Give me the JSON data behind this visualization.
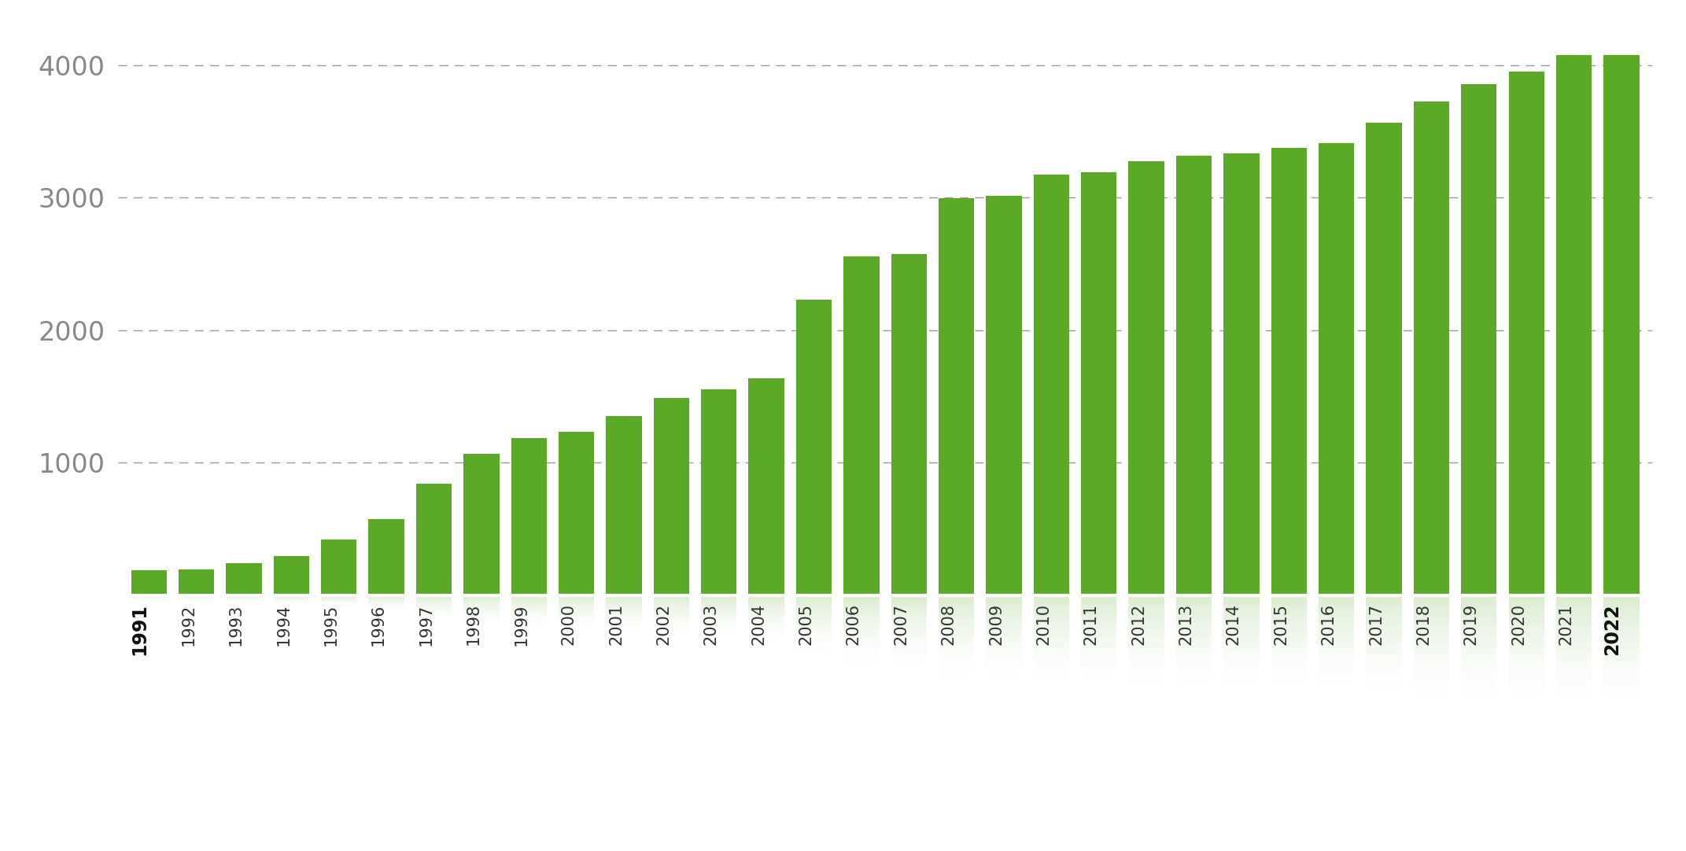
{
  "years": [
    "1991",
    "1992",
    "1993",
    "1994",
    "1995",
    "1996",
    "1997",
    "1998",
    "1999",
    "2000",
    "2001",
    "2002",
    "2003",
    "2004",
    "2005",
    "2006",
    "2007",
    "2008",
    "2009",
    "2010",
    "2011",
    "2012",
    "2013",
    "2014",
    "2015",
    "2016",
    "2017",
    "2018",
    "2019",
    "2020",
    "2021",
    "2022"
  ],
  "values": [
    190,
    195,
    245,
    295,
    420,
    575,
    840,
    1065,
    1185,
    1235,
    1350,
    1490,
    1555,
    1635,
    2230,
    2555,
    2575,
    2995,
    3015,
    3175,
    3195,
    3275,
    3315,
    3335,
    3375,
    3415,
    3565,
    3725,
    3855,
    3955,
    4075,
    4075
  ],
  "bar_color": "#5aaa28",
  "background_color": "#ffffff",
  "grid_color": "#444444",
  "yticks": [
    1000,
    2000,
    3000,
    4000
  ],
  "ylim_max": 4300,
  "tick_label_color": "#888888",
  "bold_years": [
    "1991",
    "2022"
  ],
  "bar_width": 0.75,
  "reflection_alpha_max": 0.22,
  "reflection_steps": 40,
  "reflection_ratio": 0.22
}
